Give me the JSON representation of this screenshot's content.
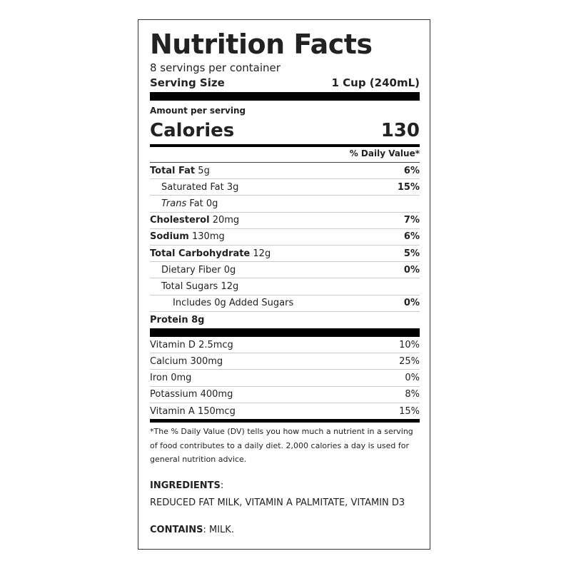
{
  "title": "Nutrition Facts",
  "servings_per_container": "8 servings per container",
  "serving_size": {
    "label": "Serving Size",
    "value": "1 Cup (240mL)"
  },
  "amount_per_serving": "Amount per serving",
  "calories": {
    "label": "Calories",
    "value": "130"
  },
  "daily_value_header": "% Daily Value*",
  "nutrients": [
    {
      "name": "Total Fat",
      "amount": "5g",
      "dv": "6%",
      "bold": true,
      "indent": 0
    },
    {
      "name": "Saturated Fat",
      "amount": "3g",
      "dv": "15%",
      "bold": false,
      "indent": 1
    },
    {
      "name": "Trans",
      "name_suffix": "Fat",
      "amount": "0g",
      "dv": "",
      "bold": false,
      "indent": 1
    },
    {
      "name": "Cholesterol",
      "amount": "20mg",
      "dv": "7%",
      "bold": true,
      "indent": 0
    },
    {
      "name": "Sodium",
      "amount": "130mg",
      "dv": "6%",
      "bold": true,
      "indent": 0
    },
    {
      "name": "Total Carbohydrate",
      "amount": "12g",
      "dv": "5%",
      "bold": true,
      "indent": 0
    },
    {
      "name": "Dietary Fiber",
      "amount": "0g",
      "dv": "0%",
      "bold": false,
      "indent": 1
    },
    {
      "name": "Total Sugars",
      "amount": "12g",
      "dv": "",
      "bold": false,
      "indent": 1
    },
    {
      "name": "Includes 0g Added Sugars",
      "amount": "",
      "dv": "0%",
      "bold": false,
      "indent": 2
    },
    {
      "name": "Protein 8g",
      "amount": "",
      "dv": "",
      "bold": true,
      "indent": 0
    }
  ],
  "vitamins": [
    {
      "name": "Vitamin D 2.5mcg",
      "dv": "10%"
    },
    {
      "name": "Calcium 300mg",
      "dv": "25%"
    },
    {
      "name": "Iron 0mg",
      "dv": "0%"
    },
    {
      "name": "Potassium 400mg",
      "dv": "8%"
    },
    {
      "name": "Vitamin A 150mcg",
      "dv": "15%"
    }
  ],
  "footnote": "*The % Daily Value (DV) tells you how much a nutrient in a serving of food contributes to a daily diet. 2,000 calories a day is used for general nutrition advice.",
  "ingredients": {
    "label": "INGREDIENTS",
    "text": "REDUCED FAT MILK, VITAMIN A PALMITATE, VITAMIN D3"
  },
  "contains": {
    "label": "CONTAINS",
    "text": "MILK."
  }
}
